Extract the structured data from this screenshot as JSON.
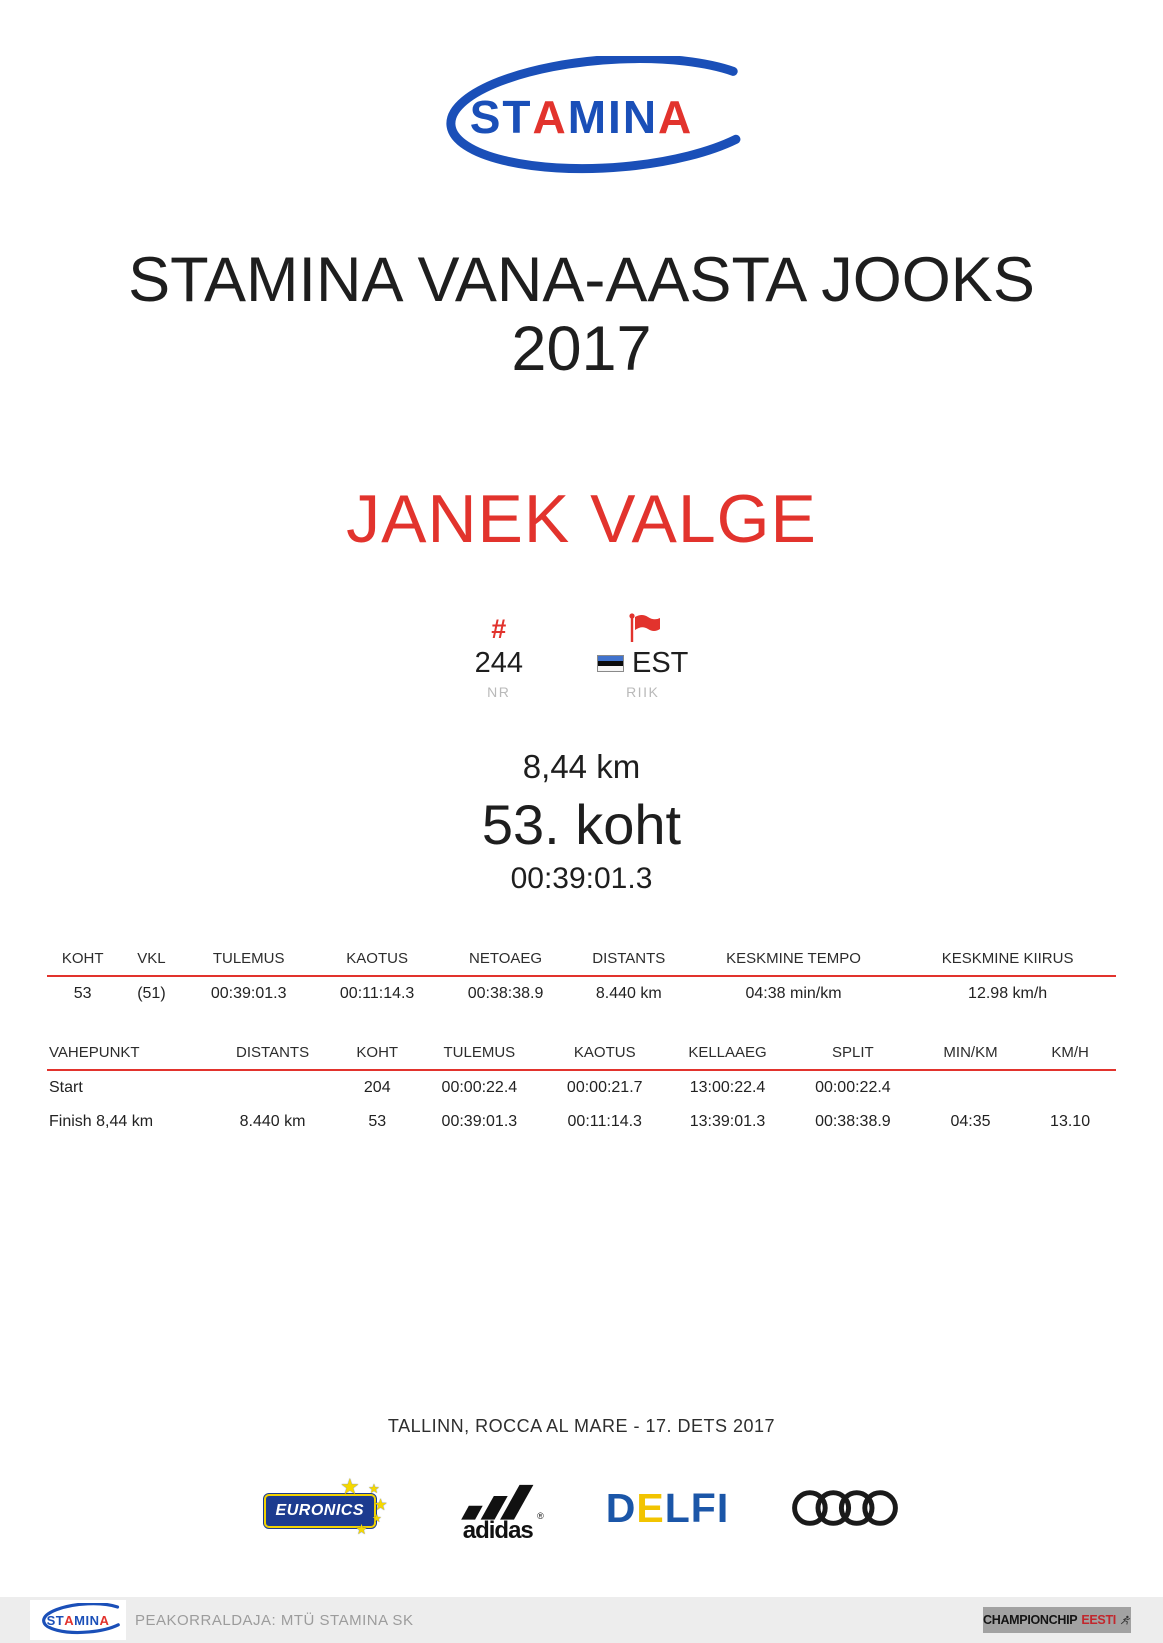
{
  "logo": {
    "segments": [
      {
        "t": "ST",
        "c": "#1a4fb8"
      },
      {
        "t": "A",
        "c": "#e2332d"
      },
      {
        "t": "MIN",
        "c": "#1a4fb8"
      },
      {
        "t": "A",
        "c": "#e2332d"
      }
    ]
  },
  "header": {
    "title_line1": "STAMINA VANA-AASTA JOOKS",
    "title_line2": "2017",
    "athlete_name": "JANEK VALGE"
  },
  "bib": {
    "hash_glyph": "#",
    "number": "244",
    "number_label": "NR",
    "country_code": "EST",
    "country_label": "RIIK"
  },
  "result": {
    "distance": "8,44 km",
    "place": "53. koht",
    "time": "00:39:01.3"
  },
  "summary_table": {
    "headers": [
      "KOHT",
      "VKL",
      "TULEMUS",
      "KAOTUS",
      "NETOAEG",
      "DISTANTS",
      "KESKMINE TEMPO",
      "KESKMINE KIIRUS"
    ],
    "rows": [
      [
        "53",
        "(51)",
        "00:39:01.3",
        "00:11:14.3",
        "00:38:38.9",
        "8.440 km",
        "04:38 min/km",
        "12.98 km/h"
      ]
    ]
  },
  "splits_table": {
    "headers": [
      "VAHEPUNKT",
      "DISTANTS",
      "KOHT",
      "TULEMUS",
      "KAOTUS",
      "KELLAAEG",
      "SPLIT",
      "MIN/KM",
      "KM/H"
    ],
    "rows": [
      [
        "Start",
        "",
        "204",
        "00:00:22.4",
        "00:00:21.7",
        "13:00:22.4",
        "00:00:22.4",
        "",
        ""
      ],
      [
        "Finish 8,44 km",
        "8.440 km",
        "53",
        "00:39:01.3",
        "00:11:14.3",
        "13:39:01.3",
        "00:38:38.9",
        "04:35",
        "13.10"
      ]
    ]
  },
  "event": {
    "location_date": "TALLINN, ROCCA AL MARE - 17. DETS 2017"
  },
  "sponsors": {
    "euronics_label": "EURONICS",
    "star_glyph": "★",
    "adidas_label": "adidas",
    "adidas_reg": "®",
    "delfi_letters": [
      {
        "t": "D",
        "c": "#1b56a8"
      },
      {
        "t": "E",
        "c": "#f2c400"
      },
      {
        "t": "L",
        "c": "#1b56a8"
      },
      {
        "t": "F",
        "c": "#1b56a8"
      },
      {
        "t": "I",
        "c": "#1b56a8"
      }
    ]
  },
  "footer": {
    "organizer": "PEAKORRALDAJA: MTÜ STAMINA SK",
    "championchip_label": "CHAMPIONCHIP",
    "championchip_country": "EESTI"
  },
  "colors": {
    "accent_red": "#e2332d",
    "brand_blue": "#1a4fb8",
    "table_rule_red": "#e2332d",
    "muted_gray": "#b9b9b9",
    "estonia_flag_blue": "#4173cd",
    "delfi_blue": "#1b56a8",
    "delfi_yellow": "#f2c400",
    "euronics_blue": "#1c3b8f",
    "euronics_yellow": "#f2d200"
  }
}
